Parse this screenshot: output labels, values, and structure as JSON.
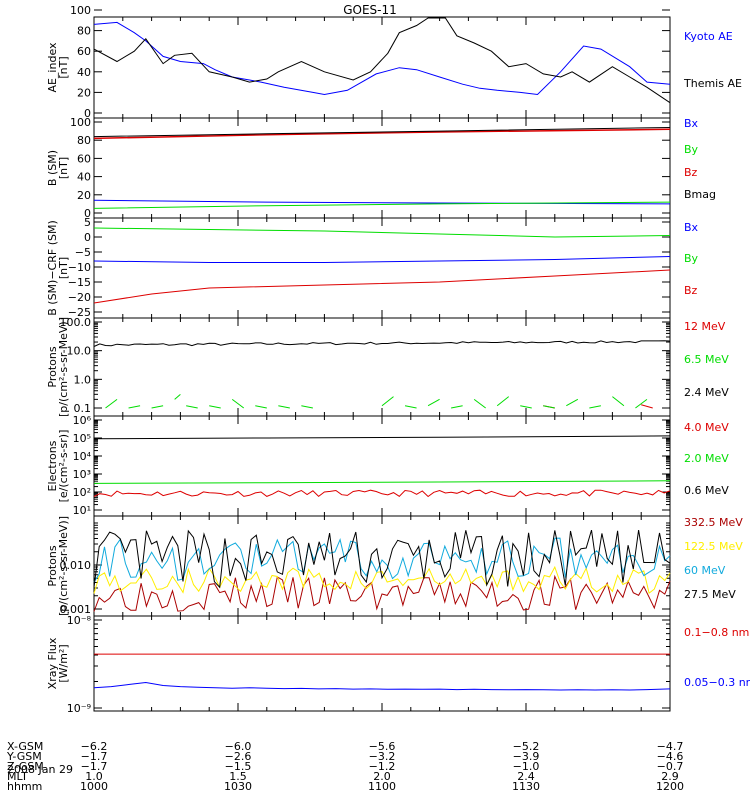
{
  "title": "GOES-11",
  "date": "2008 Jan 29",
  "colors": {
    "blue": "#0000ff",
    "green": "#00dd00",
    "red": "#dd0000",
    "black": "#000000",
    "cyan": "#11aadd",
    "yellow": "#ffee00",
    "darkred": "#aa0000"
  },
  "chart_data": [
    {
      "type": "line",
      "panel": "ae",
      "ylabel": [
        "AE_index",
        "[nT]"
      ],
      "ylim": [
        0,
        100
      ],
      "yticks": [
        "0",
        "20",
        "40",
        "60",
        "80",
        "100"
      ],
      "series": [
        {
          "name": "Kyoto AE",
          "color": "#0000ff",
          "x": [
            0,
            4,
            7,
            9,
            12,
            15,
            19,
            21,
            24,
            27,
            29,
            33,
            38,
            40,
            44,
            49,
            53,
            56,
            60,
            64,
            67,
            70,
            74,
            77,
            81,
            85,
            88,
            93,
            96,
            100
          ],
          "y": [
            86,
            88,
            78,
            70,
            55,
            50,
            48,
            42,
            35,
            32,
            30,
            25,
            20,
            18,
            22,
            38,
            44,
            42,
            35,
            28,
            24,
            22,
            20,
            18,
            40,
            65,
            62,
            45,
            30,
            28
          ]
        },
        {
          "name": "Themis AE",
          "color": "#000000",
          "x": [
            0,
            4,
            7,
            9,
            12,
            14,
            17,
            20,
            24,
            27,
            30,
            32,
            36,
            40,
            45,
            48,
            51,
            53,
            56,
            58,
            61,
            63,
            66,
            69,
            72,
            75,
            78,
            81,
            83,
            86,
            90,
            93,
            96,
            100
          ],
          "y": [
            62,
            50,
            60,
            72,
            48,
            56,
            58,
            40,
            35,
            30,
            33,
            40,
            50,
            40,
            32,
            40,
            58,
            78,
            85,
            98,
            95,
            75,
            68,
            60,
            45,
            48,
            38,
            35,
            40,
            30,
            45,
            35,
            25,
            10
          ]
        }
      ]
    },
    {
      "type": "line",
      "panel": "b",
      "ylabel": [
        "B (SM)",
        "[nT]"
      ],
      "ylim": [
        0,
        100
      ],
      "yticks": [
        "0",
        "20",
        "40",
        "60",
        "80",
        "100"
      ],
      "series": [
        {
          "name": "Bx",
          "color": "#0000ff",
          "x": [
            0,
            30,
            60,
            100
          ],
          "y": [
            14,
            12,
            11,
            10
          ]
        },
        {
          "name": "By",
          "color": "#00dd00",
          "x": [
            0,
            30,
            60,
            100
          ],
          "y": [
            5,
            8,
            10,
            12
          ]
        },
        {
          "name": "Bz",
          "color": "#dd0000",
          "x": [
            0,
            30,
            60,
            100
          ],
          "y": [
            82,
            86,
            89,
            92
          ]
        },
        {
          "name": "Bmag",
          "color": "#000000",
          "x": [
            0,
            30,
            60,
            100
          ],
          "y": [
            84,
            87,
            90,
            94
          ]
        }
      ]
    },
    {
      "type": "line",
      "panel": "dB",
      "ylabel": [
        "B (SM)−CRF (SM)",
        "[nT]"
      ],
      "ylim": [
        -25,
        5
      ],
      "yticks": [
        "−25",
        "−20",
        "−15",
        "−10",
        "−5",
        "0",
        "5"
      ],
      "series": [
        {
          "name": "Bx",
          "color": "#0000ff",
          "x": [
            0,
            20,
            40,
            60,
            80,
            100
          ],
          "y": [
            -8,
            -8.5,
            -8.5,
            -8,
            -7.5,
            -6.5
          ]
        },
        {
          "name": "By",
          "color": "#00dd00",
          "x": [
            0,
            20,
            40,
            60,
            80,
            100
          ],
          "y": [
            3,
            2.5,
            2,
            1,
            0,
            0.5
          ]
        },
        {
          "name": "Bz",
          "color": "#dd0000",
          "x": [
            0,
            10,
            20,
            40,
            60,
            80,
            100
          ],
          "y": [
            -22,
            -19,
            -17,
            -16,
            -15,
            -13,
            -11
          ]
        }
      ]
    },
    {
      "type": "line",
      "panel": "protons_hi",
      "ylabel": [
        "Protons",
        "[p/(cm²-s-sr-MeV)]"
      ],
      "yscale": "log",
      "ylim": [
        0.1,
        100
      ],
      "yticks": [
        "0.1",
        "1.0",
        "10.0",
        "100.0"
      ],
      "series": [
        {
          "name": "12 MeV",
          "color": "#dd0000",
          "x": [
            78,
            80,
            95,
            97
          ],
          "y": [
            0.12,
            0.1,
            0.13,
            0.1
          ]
        },
        {
          "name": "6.5 MeV",
          "color": "#00dd00",
          "x": [
            2,
            4,
            6,
            8,
            10,
            12,
            14,
            15,
            16,
            18,
            20,
            22,
            24,
            26,
            28,
            30,
            32,
            34,
            36,
            38,
            50,
            52,
            54,
            56,
            58,
            60,
            62,
            64,
            66,
            68,
            70,
            72,
            74,
            76,
            78,
            80,
            82,
            84,
            86,
            88,
            90,
            92,
            94,
            96
          ],
          "y": [
            0.1,
            0.2,
            0.1,
            0.12,
            0.1,
            0.12,
            0.2,
            0.3,
            0.12,
            0.1,
            0.12,
            0.1,
            0.2,
            0.1,
            0.12,
            0.1,
            0.12,
            0.1,
            0.12,
            0.1,
            0.12,
            0.25,
            0.12,
            0.1,
            0.12,
            0.2,
            0.1,
            0.12,
            0.2,
            0.1,
            0.12,
            0.25,
            0.12,
            0.1,
            0.12,
            0.1,
            0.12,
            0.2,
            0.1,
            0.12,
            0.25,
            0.12,
            0.1,
            0.2
          ]
        },
        {
          "name": "2.4 MeV",
          "color": "#000000",
          "x": [],
          "y": []
        }
      ]
    },
    {
      "type": "line",
      "panel": "electrons",
      "ylabel": [
        "Electrons",
        "[e/(cm²-s-sr)]"
      ],
      "yscale": "log",
      "ylim": [
        10,
        1000000
      ],
      "yticks": [
        "10¹",
        "10²",
        "10³",
        "10⁴",
        "10⁵",
        "10⁶"
      ],
      "series": [
        {
          "name": "4.0 MeV",
          "color": "#dd0000",
          "x": [],
          "y": []
        },
        {
          "name": "2.0 MeV",
          "color": "#00dd00",
          "x": [
            0,
            30,
            60,
            100
          ],
          "y": [
            300,
            330,
            360,
            420
          ]
        },
        {
          "name": "0.6 MeV",
          "color": "#000000",
          "x": [
            0,
            30,
            60,
            100
          ],
          "y": [
            90000,
            100000,
            110000,
            130000
          ]
        }
      ]
    },
    {
      "type": "line",
      "panel": "protons_lo",
      "ylabel": [
        "Protons",
        "[p/(cm²-s-sr-MeV)]"
      ],
      "yscale": "log",
      "ylim": [
        0.001,
        0.1
      ],
      "yticks": [
        "0.001",
        "0.010"
      ],
      "series": [
        {
          "name": "332.5 MeV",
          "color": "#aa0000",
          "x": [],
          "y": []
        },
        {
          "name": "122.5 MeV",
          "color": "#ffee00",
          "x": [],
          "y": []
        },
        {
          "name": "60 MeV",
          "color": "#11aadd",
          "x": [],
          "y": []
        },
        {
          "name": "27.5 MeV",
          "color": "#000000",
          "x": [],
          "y": []
        }
      ]
    },
    {
      "type": "line",
      "panel": "xray",
      "ylabel": [
        "Xray  Flux",
        "[W/m²]"
      ],
      "yscale": "log",
      "ylim": [
        1e-09,
        1e-08
      ],
      "yticks": [
        "10⁻⁹",
        "10⁻⁸"
      ],
      "series": [
        {
          "name": "0.1−0.8 nm",
          "color": "#dd0000",
          "x": [
            0,
            100
          ],
          "y": [
            4.1e-09,
            4.1e-09
          ]
        },
        {
          "name": "0.05−0.3 nm",
          "color": "#0000ff",
          "x": [
            0,
            3,
            6,
            9,
            12,
            15,
            18,
            21,
            24,
            27,
            30,
            33,
            36,
            39,
            42,
            45,
            48,
            51,
            54,
            57,
            60,
            63,
            66,
            69,
            72,
            75,
            78,
            81,
            84,
            87,
            90,
            93,
            96,
            100
          ],
          "y": [
            1.7e-09,
            1.75e-09,
            1.85e-09,
            1.95e-09,
            1.8e-09,
            1.75e-09,
            1.72e-09,
            1.7e-09,
            1.68e-09,
            1.7e-09,
            1.68e-09,
            1.66e-09,
            1.67e-09,
            1.65e-09,
            1.66e-09,
            1.64e-09,
            1.65e-09,
            1.63e-09,
            1.64e-09,
            1.63e-09,
            1.64e-09,
            1.62e-09,
            1.63e-09,
            1.62e-09,
            1.61e-09,
            1.62e-09,
            1.61e-09,
            1.6e-09,
            1.61e-09,
            1.6e-09,
            1.61e-09,
            1.6e-09,
            1.62e-09,
            1.65e-09
          ]
        }
      ]
    }
  ],
  "x_axis": {
    "row_labels": [
      "X-GSM",
      "Y-GSM",
      "Z-GSM",
      "MLT",
      "hhmm"
    ],
    "ticks": [
      {
        "values": [
          "−6.2",
          "−1.7",
          "−1.7",
          "1.0",
          "1000"
        ]
      },
      {
        "values": [
          "−6.0",
          "−2.6",
          "−1.5",
          "1.5",
          "1030"
        ]
      },
      {
        "values": [
          "−5.6",
          "−3.2",
          "−1.2",
          "2.0",
          "1100"
        ]
      },
      {
        "values": [
          "−5.2",
          "−3.9",
          "−1.0",
          "2.4",
          "1130"
        ]
      },
      {
        "values": [
          "−4.7",
          "−4.6",
          "−0.7",
          "2.9",
          "1200"
        ]
      }
    ]
  }
}
